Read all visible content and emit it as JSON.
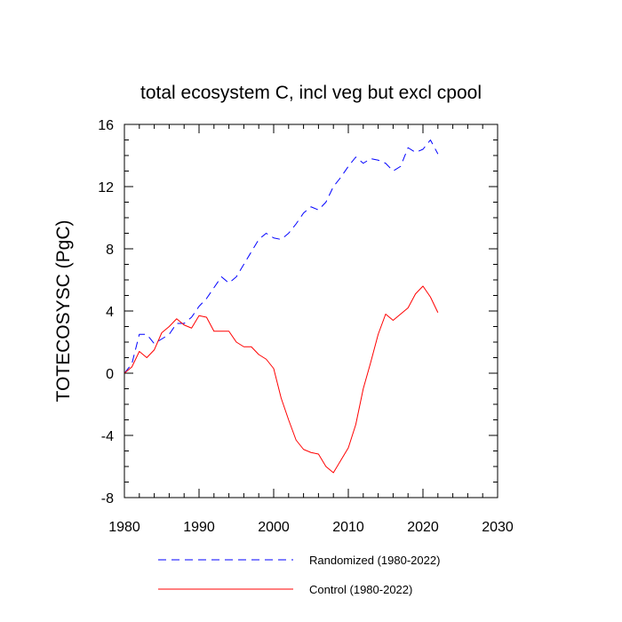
{
  "chart_data": {
    "type": "line",
    "title": "total ecosystem C, incl veg but excl cpool",
    "ylabel": "TOTECOSYSC  (PgC)",
    "xlabel": "",
    "xlim": [
      1980,
      2030
    ],
    "ylim": [
      -8,
      16
    ],
    "xticks": [
      1980,
      1990,
      2000,
      2010,
      2020,
      2030
    ],
    "yticks": [
      -8,
      -4,
      0,
      4,
      8,
      12,
      16
    ],
    "x": [
      1980,
      1981,
      1982,
      1983,
      1984,
      1985,
      1986,
      1987,
      1988,
      1989,
      1990,
      1991,
      1992,
      1993,
      1994,
      1995,
      1996,
      1997,
      1998,
      1999,
      2000,
      2001,
      2002,
      2003,
      2004,
      2005,
      2006,
      2007,
      2008,
      2009,
      2010,
      2011,
      2012,
      2013,
      2014,
      2015,
      2016,
      2017,
      2018,
      2019,
      2020,
      2021,
      2022
    ],
    "series": [
      {
        "name": "Randomized (1980-2022)",
        "color": "#0000ff",
        "dash": "dashed",
        "values": [
          0.0,
          0.6,
          2.5,
          2.5,
          1.9,
          2.2,
          2.5,
          3.2,
          3.2,
          3.6,
          4.3,
          4.8,
          5.5,
          6.2,
          5.8,
          6.2,
          7.0,
          7.8,
          8.6,
          9.0,
          8.7,
          8.6,
          9.0,
          9.6,
          10.3,
          10.7,
          10.5,
          11.0,
          12.0,
          12.6,
          13.3,
          13.9,
          13.5,
          13.8,
          13.7,
          13.5,
          13.0,
          13.3,
          14.5,
          14.2,
          14.4,
          15.0,
          14.1
        ]
      },
      {
        "name": "Control (1980-2022)",
        "color": "#ff0000",
        "dash": "solid",
        "values": [
          0.0,
          0.4,
          1.4,
          1.0,
          1.5,
          2.6,
          3.0,
          3.5,
          3.1,
          2.9,
          3.7,
          3.6,
          2.7,
          2.7,
          2.7,
          2.0,
          1.7,
          1.7,
          1.2,
          0.9,
          0.3,
          -1.6,
          -3.0,
          -4.3,
          -4.9,
          -5.1,
          -5.2,
          -6.0,
          -6.4,
          -5.6,
          -4.8,
          -3.3,
          -1.0,
          0.7,
          2.5,
          3.8,
          3.4,
          3.8,
          4.2,
          5.1,
          5.6,
          4.9,
          3.9
        ]
      }
    ],
    "legend_position": "bottom"
  }
}
